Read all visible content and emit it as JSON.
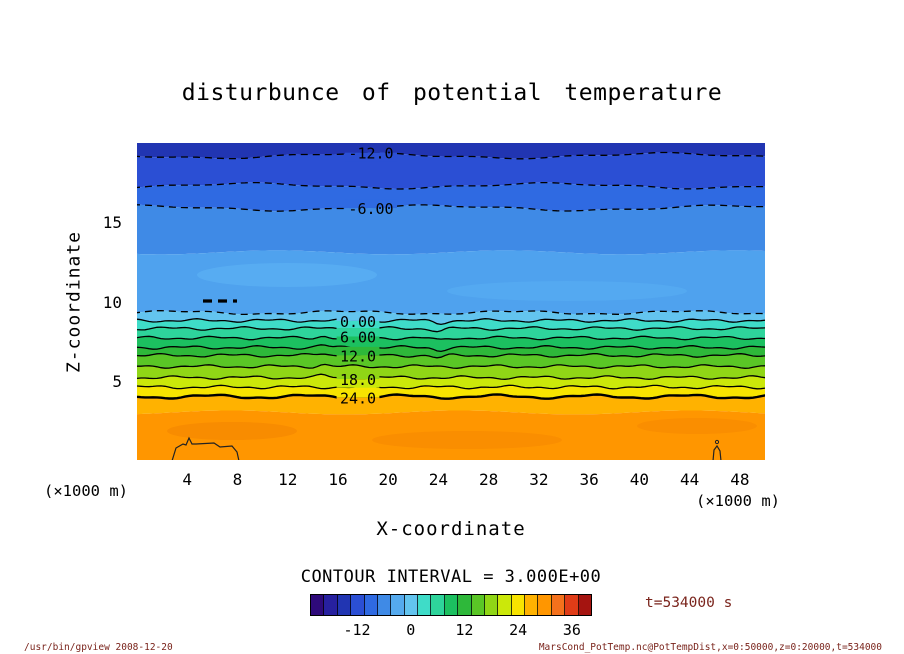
{
  "title": "disturbunce of potential temperature",
  "axes": {
    "y_label": "Z-coordinate",
    "y_unit": "(×1000 m)",
    "x_label": "X-coordinate",
    "x_unit": "(×1000 m)"
  },
  "contour_note": "CONTOUR INTERVAL = 3.000E+00",
  "time_label": "t=534000 s",
  "footer_left": "/usr/bin/gpview  2008-12-20",
  "footer_right": "MarsCond_PotTemp.nc@PotTempDist,x=0:50000,z=0:20000,t=534000",
  "chart_data": {
    "type": "heatmap",
    "subtype": "filled-contour",
    "title": "disturbunce of potential temperature",
    "xlabel": "X-coordinate (×1000 m)",
    "ylabel": "Z-coordinate (×1000 m)",
    "x_range_m": [
      0,
      50000
    ],
    "z_range_m": [
      0,
      20000
    ],
    "x_ticks": [
      4,
      8,
      12,
      16,
      20,
      24,
      28,
      32,
      36,
      40,
      44,
      48
    ],
    "y_ticks": [
      5,
      10,
      15
    ],
    "contour_interval": 3.0,
    "contour_labels": [
      "-12.0",
      "-6.00",
      "0.00",
      "6.00",
      "12.0",
      "18.0",
      "24.0"
    ],
    "boundaries": [
      {
        "level": -12,
        "z": 19.2,
        "style": "dashed",
        "label": "-12.0"
      },
      {
        "level": -9,
        "z": 17.3,
        "style": "dashed"
      },
      {
        "level": -6,
        "z": 15.9,
        "style": "dashed",
        "label": "-6.00"
      },
      {
        "level": null,
        "z": 13.1,
        "style": "none"
      },
      {
        "level": -3,
        "z": 9.3,
        "style": "dashed"
      },
      {
        "level": 0,
        "z": 8.8,
        "style": "solid",
        "label": "0.00"
      },
      {
        "level": 3,
        "z": 8.3,
        "style": "solid"
      },
      {
        "level": 6,
        "z": 7.7,
        "style": "solid",
        "label": "6.00"
      },
      {
        "level": 9,
        "z": 7.1,
        "style": "solid"
      },
      {
        "level": 12,
        "z": 6.6,
        "style": "solid",
        "label": "12.0"
      },
      {
        "level": 15,
        "z": 5.9,
        "style": "solid"
      },
      {
        "level": 18,
        "z": 5.2,
        "style": "solid",
        "label": "18.0"
      },
      {
        "level": 21,
        "z": 4.6,
        "style": "solid"
      },
      {
        "level": 24,
        "z": 4.0,
        "style": "solid",
        "thick": true,
        "label": "24.0"
      },
      {
        "level": null,
        "z": 3.0,
        "style": "none"
      }
    ],
    "band_colors": [
      "#2135b2",
      "#2b4fd4",
      "#2f6ae2",
      "#3f8ae6",
      "#4fa2ee",
      "#63c4ef",
      "#3fdcc8",
      "#2ed49b",
      "#1cc060",
      "#2eb83a",
      "#5ac626",
      "#90d616",
      "#cbe80a",
      "#f8e400",
      "#ffb200",
      "#ff9600"
    ],
    "colorbar": {
      "vmin": -22.5,
      "vmax": 40.5,
      "tick_values": [
        -12,
        0,
        12,
        24,
        36
      ],
      "tick_labels": [
        "-12",
        "0",
        "12",
        "24",
        "36"
      ],
      "colors": [
        "#2e0a7a",
        "#27209f",
        "#2135b2",
        "#2b4fd4",
        "#2f6ae2",
        "#3f8ae6",
        "#55aaee",
        "#63c4ef",
        "#3fdcc8",
        "#2ed49b",
        "#1cc060",
        "#2eb83a",
        "#5ac626",
        "#90d616",
        "#cbe80a",
        "#f8e400",
        "#ffb200",
        "#ff9600",
        "#f4711c",
        "#e03c17",
        "#a51410"
      ]
    }
  }
}
